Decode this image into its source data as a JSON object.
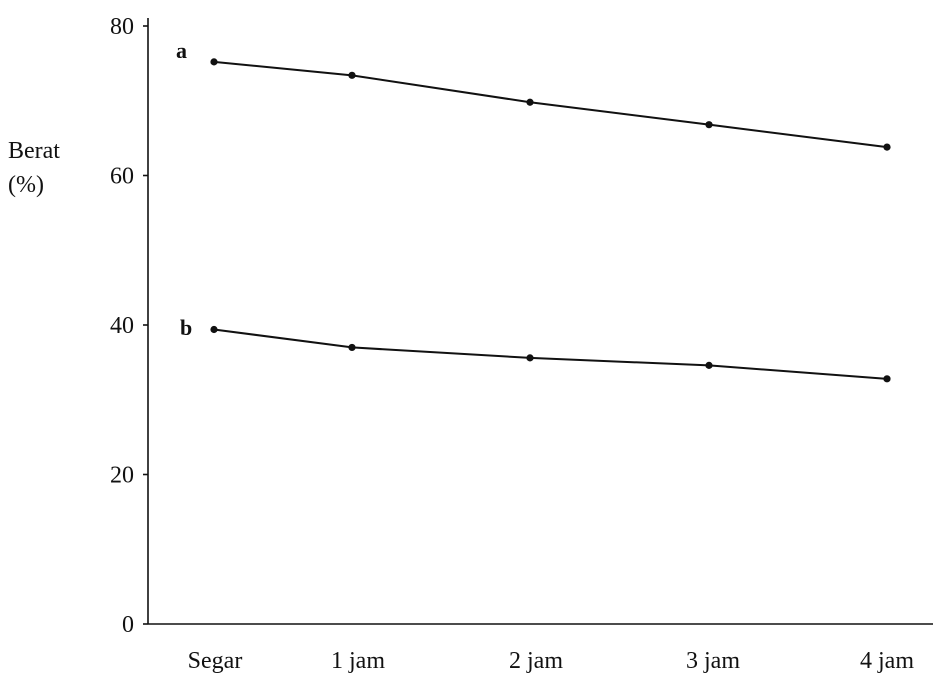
{
  "chart_data": {
    "type": "line",
    "title": "",
    "xlabel": "",
    "ylabel": [
      "Berat",
      "(%)"
    ],
    "categories": [
      "Segar",
      "1 jam",
      "2 jam",
      "3 jam",
      "4 jam"
    ],
    "yticks": [
      "0",
      "20",
      "40",
      "60",
      "80"
    ],
    "ylim": [
      0,
      80
    ],
    "grid": false,
    "series": [
      {
        "name": "a",
        "values": [
          75.2,
          73.4,
          69.8,
          66.8,
          63.8
        ]
      },
      {
        "name": "b",
        "values": [
          39.4,
          37.0,
          35.6,
          34.6,
          32.8
        ]
      }
    ],
    "colors": {
      "ink": "#111111",
      "background": "#ffffff"
    }
  }
}
